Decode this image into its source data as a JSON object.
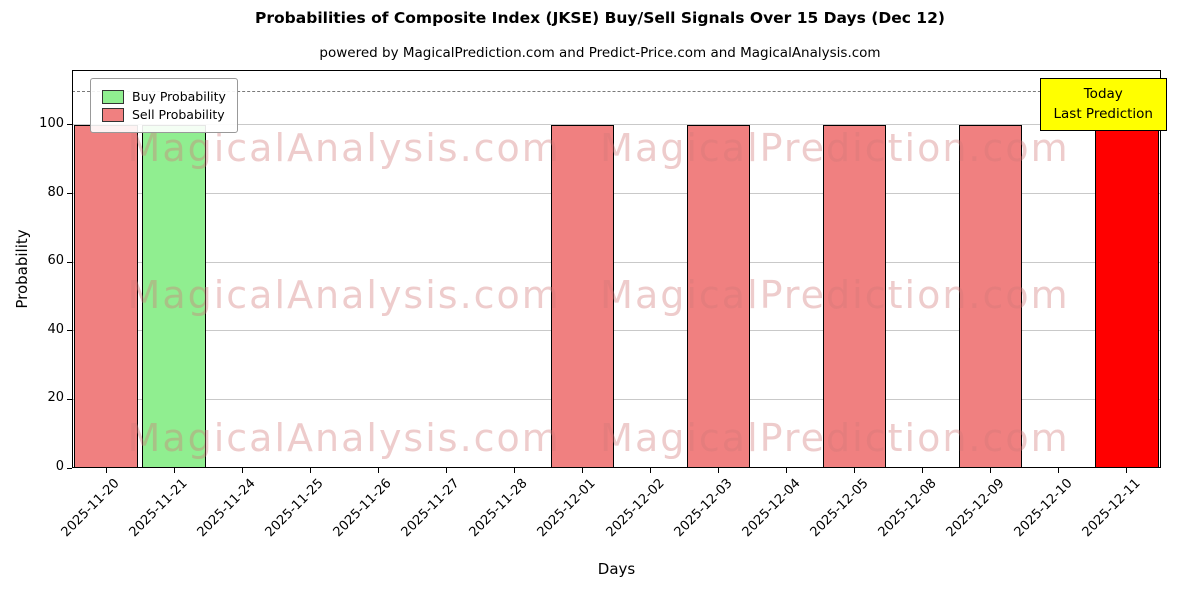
{
  "title": "Probabilities of Composite Index (JKSE) Buy/Sell Signals Over 15 Days (Dec 12)",
  "subtitle": "powered by MagicalPrediction.com and Predict-Price.com and MagicalAnalysis.com",
  "xlabel": "Days",
  "ylabel": "Probability",
  "legend": {
    "buy": "Buy Probability",
    "sell": "Sell Probability"
  },
  "annotation": {
    "line1": "Today",
    "line2": "Last Prediction",
    "background": "#ffff00"
  },
  "chart_data": {
    "type": "bar",
    "categories": [
      "2025-11-20",
      "2025-11-21",
      "2025-11-24",
      "2025-11-25",
      "2025-11-26",
      "2025-11-27",
      "2025-11-28",
      "2025-12-01",
      "2025-12-02",
      "2025-12-03",
      "2025-12-04",
      "2025-12-05",
      "2025-12-08",
      "2025-12-09",
      "2025-12-10",
      "2025-12-11"
    ],
    "series": [
      {
        "name": "Buy Probability",
        "color": "#90ee90",
        "values": [
          0,
          100,
          0,
          0,
          0,
          0,
          0,
          0,
          0,
          0,
          0,
          0,
          0,
          0,
          0,
          0
        ]
      },
      {
        "name": "Sell Probability",
        "color": "#f08080",
        "values": [
          100,
          0,
          0,
          0,
          0,
          0,
          0,
          100,
          0,
          100,
          0,
          100,
          0,
          100,
          0,
          0
        ]
      },
      {
        "name": "Today Last Prediction",
        "color": "#ff0000",
        "values": [
          0,
          0,
          0,
          0,
          0,
          0,
          0,
          0,
          0,
          0,
          0,
          0,
          0,
          0,
          0,
          100
        ]
      }
    ],
    "yticks": [
      0,
      20,
      40,
      60,
      80,
      100
    ],
    "ylim": [
      0,
      116
    ],
    "dashed_line_y": 110,
    "grid": "horizontal",
    "legend_position": "upper-left",
    "watermarks": [
      "MagicalAnalysis.com",
      "MagicalPrediction.com"
    ]
  }
}
